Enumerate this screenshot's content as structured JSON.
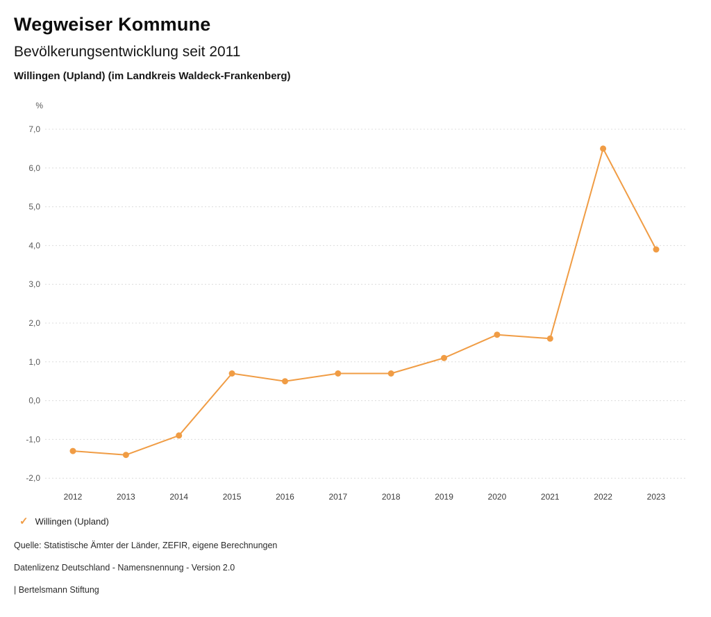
{
  "header": {
    "title": "Wegweiser Kommune",
    "subtitle": "Bevölkerungsentwicklung seit 2011",
    "location": "Willingen (Upland) (im Landkreis Waldeck-Frankenberg)"
  },
  "legend": {
    "check_icon": "✓",
    "label": "Willingen (Upland)"
  },
  "footer": {
    "source": "Quelle: Statistische Ämter der Länder, ZEFIR, eigene Berechnungen",
    "license": "Datenlizenz Deutschland - Namensnennung - Version 2.0",
    "attribution": "| Bertelsmann Stiftung"
  },
  "colors": {
    "accent": "#F09C44",
    "grid": "#DCDCDC",
    "axis_text": "#595959",
    "tick_text": "#3C3C3C"
  },
  "chart_data": {
    "type": "line",
    "title": "Bevölkerungsentwicklung seit 2011",
    "subtitle": "Willingen (Upland) (im Landkreis Waldeck-Frankenberg)",
    "unit": "%",
    "categories": [
      "2012",
      "2013",
      "2014",
      "2015",
      "2016",
      "2017",
      "2018",
      "2019",
      "2020",
      "2021",
      "2022",
      "2023"
    ],
    "series": [
      {
        "name": "Willingen (Upland)",
        "color": "#F09C44",
        "values": [
          -1.3,
          -1.4,
          -0.9,
          0.7,
          0.5,
          0.7,
          0.7,
          1.1,
          1.7,
          1.6,
          6.5,
          3.9
        ]
      }
    ],
    "ylim": [
      -2,
      7
    ],
    "ytick_step": 1,
    "ytick_labels": [
      "7,0",
      "6,0",
      "5,0",
      "4,0",
      "3,0",
      "2,0",
      "1,0",
      "0,0",
      "-1,0",
      "-2,0"
    ],
    "ylabel": "%",
    "xlabel": "",
    "grid": "horizontal-dotted",
    "legend_position": "bottom-left"
  }
}
